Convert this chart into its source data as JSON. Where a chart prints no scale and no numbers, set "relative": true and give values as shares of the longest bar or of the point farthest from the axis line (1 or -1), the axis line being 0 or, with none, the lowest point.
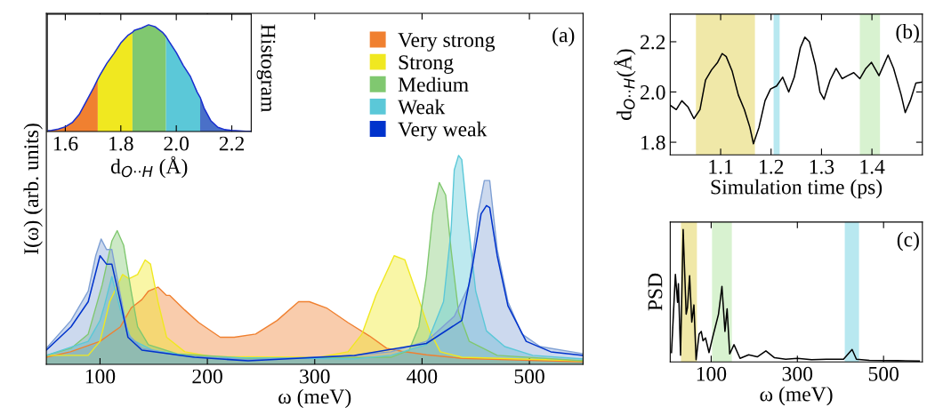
{
  "chart_data": [
    {
      "type": "area",
      "xlabel": "ω (meV)",
      "ylabel": "I(ω) (arb. units)",
      "relative": true,
      "xlim": [
        50,
        550
      ],
      "xticks": [
        100,
        200,
        300,
        400,
        500
      ],
      "legend": "top",
      "annotations": [
        "Histogram",
        "(a)"
      ],
      "series": [
        {
          "name": "Very strong",
          "color": "#f08030",
          "x": [
            50,
            72.5,
            100,
            119,
            129,
            139,
            145,
            154,
            162,
            165,
            179,
            192,
            212,
            225,
            245,
            265,
            285,
            295,
            311,
            331,
            351,
            367,
            381,
            404,
            437,
            550
          ],
          "values": [
            0.034,
            0.06,
            0.11,
            0.18,
            0.27,
            0.31,
            0.35,
            0.37,
            0.33,
            0.33,
            0.26,
            0.2,
            0.13,
            0.13,
            0.145,
            0.21,
            0.3,
            0.3,
            0.27,
            0.2,
            0.136,
            0.077,
            0.063,
            0.046,
            0.029,
            0.012
          ]
        },
        {
          "name": "Strong",
          "color": "#f0e820",
          "x": [
            50,
            89,
            100,
            109,
            121,
            127,
            135,
            142,
            147,
            154,
            162,
            179,
            205,
            304,
            331,
            344,
            357,
            374,
            384,
            397,
            407,
            417,
            437,
            550
          ],
          "values": [
            0.043,
            0.043,
            0.11,
            0.3,
            0.43,
            0.41,
            0.43,
            0.5,
            0.48,
            0.3,
            0.13,
            0.06,
            0.037,
            0.034,
            0.06,
            0.145,
            0.33,
            0.52,
            0.5,
            0.31,
            0.16,
            0.06,
            0.034,
            0.017
          ]
        },
        {
          "name": "Medium",
          "color": "#80c870",
          "x": [
            50,
            73,
            89,
            102,
            111,
            116,
            122,
            129,
            135,
            145,
            172,
            238,
            371,
            388,
            397,
            404,
            410,
            416,
            422,
            427,
            434,
            444,
            470,
            550
          ],
          "values": [
            0.043,
            0.077,
            0.145,
            0.38,
            0.59,
            0.64,
            0.57,
            0.35,
            0.18,
            0.094,
            0.05,
            0.029,
            0.034,
            0.068,
            0.18,
            0.42,
            0.72,
            0.87,
            0.81,
            0.55,
            0.25,
            0.11,
            0.043,
            0.017
          ]
        },
        {
          "name": "Weak",
          "color": "#5bc8d8",
          "x": [
            50,
            89,
            100,
            104,
            111,
            119,
            129,
            149,
            188,
            337,
            371,
            404,
            420,
            427,
            430,
            434,
            437,
            442,
            450,
            460,
            477,
            503,
            550
          ],
          "values": [
            0.043,
            0.11,
            0.21,
            0.28,
            0.42,
            0.26,
            0.12,
            0.068,
            0.034,
            0.026,
            0.043,
            0.094,
            0.3,
            0.64,
            0.93,
            1.0,
            0.98,
            0.72,
            0.35,
            0.16,
            0.085,
            0.043,
            0.026
          ]
        },
        {
          "color": "#7fa0d4",
          "x": [
            50,
            73,
            89,
            96,
            101,
            106,
            111,
            119,
            126,
            139,
            172,
            238,
            337,
            371,
            404,
            430,
            444,
            452,
            458,
            463,
            470,
            480,
            493,
            510,
            550
          ],
          "values": [
            0.077,
            0.21,
            0.35,
            0.52,
            0.6,
            0.55,
            0.55,
            0.33,
            0.145,
            0.077,
            0.043,
            0.022,
            0.043,
            0.06,
            0.11,
            0.23,
            0.38,
            0.72,
            0.88,
            0.88,
            0.55,
            0.3,
            0.145,
            0.085,
            0.051
          ]
        },
        {
          "name": "Very weak",
          "type": "line",
          "color": "#0033cc",
          "x": [
            50,
            73,
            89,
            100,
            106,
            111,
            119,
            126,
            139,
            188,
            238,
            337,
            404,
            437,
            447,
            455,
            460,
            463,
            470,
            480,
            497,
            520,
            550
          ],
          "values": [
            0.068,
            0.18,
            0.3,
            0.52,
            0.48,
            0.48,
            0.3,
            0.13,
            0.068,
            0.034,
            0.017,
            0.043,
            0.1,
            0.21,
            0.47,
            0.72,
            0.76,
            0.75,
            0.52,
            0.28,
            0.11,
            0.06,
            0.043
          ]
        }
      ]
    },
    {
      "type": "area",
      "xlabel": "d$_{O··H}$ (Å)",
      "relative": true,
      "tick_labels": "x",
      "xlim": [
        1.535,
        2.27
      ],
      "xticks": [
        1.6,
        1.8,
        {
          "value": 2,
          "label": "2.0"
        },
        2.2
      ],
      "series": [
        {
          "color": "#f08030",
          "x": [
            1.54,
            1.55,
            1.575,
            1.6,
            1.625,
            1.65,
            1.675,
            1.7,
            1.717
          ],
          "values": [
            0.008,
            0.01,
            0.024,
            0.045,
            0.084,
            0.16,
            0.28,
            0.4,
            0.49
          ]
        },
        {
          "color": "#f0e820",
          "x": [
            1.717,
            1.725,
            1.75,
            1.775,
            1.8,
            1.825,
            1.842
          ],
          "values": [
            0.49,
            0.53,
            0.64,
            0.73,
            0.83,
            0.9,
            0.93
          ]
        },
        {
          "color": "#80c870",
          "x": [
            1.842,
            1.85,
            1.875,
            1.9,
            1.925,
            1.95,
            1.963
          ],
          "values": [
            0.93,
            0.95,
            0.97,
            1.0,
            0.98,
            0.93,
            0.89
          ]
        },
        {
          "color": "#5bc8d8",
          "x": [
            1.963,
            1.975,
            2.0,
            2.025,
            2.05,
            2.075,
            2.086
          ],
          "values": [
            0.89,
            0.84,
            0.74,
            0.62,
            0.52,
            0.37,
            0.32
          ]
        },
        {
          "color": "#4a70c8",
          "x": [
            2.086,
            2.1,
            2.125,
            2.15,
            2.175,
            2.2,
            2.225,
            2.25,
            2.27
          ],
          "values": [
            0.32,
            0.22,
            0.1,
            0.04,
            0.018,
            0.01,
            0.006,
            0.003,
            0.002
          ]
        },
        {
          "type": "line",
          "color": "#1a2fd0",
          "x": [
            1.54,
            1.55,
            1.575,
            1.6,
            1.625,
            1.65,
            1.675,
            1.7,
            1.717,
            1.725,
            1.75,
            1.775,
            1.8,
            1.825,
            1.842,
            1.85,
            1.875,
            1.9,
            1.925,
            1.95,
            1.963,
            1.975,
            2.0,
            2.025,
            2.05,
            2.075,
            2.086,
            2.1,
            2.125,
            2.15,
            2.175,
            2.2,
            2.225,
            2.25,
            2.27
          ],
          "values": [
            0.008,
            0.01,
            0.024,
            0.045,
            0.084,
            0.16,
            0.28,
            0.4,
            0.49,
            0.53,
            0.64,
            0.73,
            0.83,
            0.9,
            0.93,
            0.95,
            0.97,
            1.0,
            0.98,
            0.93,
            0.89,
            0.84,
            0.74,
            0.62,
            0.52,
            0.37,
            0.32,
            0.22,
            0.1,
            0.04,
            0.018,
            0.01,
            0.006,
            0.003,
            0.002
          ]
        }
      ]
    },
    {
      "type": "line",
      "xlabel": "Simulation time (ps)",
      "ylabel": "d$_{O··H}$(Å)",
      "xlim": [
        1.0,
        1.5
      ],
      "xticks": [
        1.1,
        1.2,
        1.3,
        1.4
      ],
      "ylim": [
        1.75,
        2.31
      ],
      "yticks": [
        1.8,
        {
          "value": 2,
          "label": "2.0"
        },
        2.2
      ],
      "annotations": [
        "(b)"
      ],
      "bands": [
        {
          "axis": "x",
          "from": 1.051,
          "to": 1.168,
          "color": "#f0e8a8"
        },
        {
          "axis": "x",
          "from": 1.205,
          "to": 1.217,
          "color": "#b8e8f0"
        },
        {
          "axis": "x",
          "from": 1.376,
          "to": 1.416,
          "color": "#d8f2d0"
        }
      ],
      "series": [
        {
          "color": "#000000",
          "x": [
            1.0,
            1.012,
            1.023,
            1.035,
            1.047,
            1.059,
            1.07,
            1.082,
            1.094,
            1.103,
            1.111,
            1.123,
            1.135,
            1.147,
            1.158,
            1.165,
            1.176,
            1.188,
            1.199,
            1.211,
            1.223,
            1.235,
            1.246,
            1.258,
            1.267,
            1.276,
            1.288,
            1.297,
            1.305,
            1.317,
            1.329,
            1.341,
            1.352,
            1.364,
            1.376,
            1.388,
            1.399,
            1.414,
            1.432,
            1.443,
            1.458,
            1.466,
            1.476,
            1.487,
            1.5
          ],
          "values": [
            1.947,
            1.93,
            1.965,
            1.941,
            1.894,
            1.93,
            2.047,
            2.088,
            2.118,
            2.153,
            2.141,
            2.082,
            1.988,
            1.93,
            1.859,
            1.794,
            1.859,
            1.965,
            2.012,
            2.024,
            2.059,
            2.0,
            2.059,
            2.176,
            2.218,
            2.2,
            2.106,
            2.0,
            1.971,
            2.047,
            2.094,
            2.053,
            2.065,
            2.077,
            2.053,
            2.094,
            2.118,
            2.065,
            2.147,
            2.094,
            1.988,
            1.918,
            1.965,
            2.035,
            2.04
          ]
        }
      ]
    },
    {
      "type": "line",
      "xlabel": "ω (meV)",
      "ylabel": "PSD",
      "relative": true,
      "xlim": [
        5,
        590
      ],
      "xticks": [
        100,
        300,
        500
      ],
      "annotations": [
        "(c)"
      ],
      "bands": [
        {
          "axis": "x",
          "from": 30,
          "to": 67,
          "color": "#f0e8a8"
        },
        {
          "axis": "x",
          "from": 102,
          "to": 148,
          "color": "#d8f2d0"
        },
        {
          "axis": "x",
          "from": 410,
          "to": 443,
          "color": "#b8e8f0"
        }
      ],
      "series": [
        {
          "color": "#000000",
          "x": [
            8,
            17,
            22,
            24,
            29,
            35,
            42,
            45,
            50,
            55,
            60,
            65,
            72,
            77,
            81,
            87,
            95,
            103,
            110,
            117,
            125,
            132,
            137,
            143,
            153,
            167,
            187,
            207,
            227,
            247,
            273,
            300,
            333,
            367,
            407,
            427,
            437,
            467,
            533,
            583
          ],
          "values": [
            0.07,
            0.66,
            0.45,
            0.59,
            0.05,
            1.0,
            0.36,
            0.41,
            0.65,
            0.3,
            0.43,
            0.016,
            0.21,
            0.23,
            0.16,
            0.18,
            0.07,
            0.18,
            0.27,
            0.36,
            0.57,
            0.23,
            0.4,
            0.06,
            0.13,
            0.027,
            0.054,
            0.038,
            0.083,
            0.031,
            0.02,
            0.027,
            0.016,
            0.02,
            0.02,
            0.094,
            0.02,
            0.011,
            0.009,
            0.007
          ]
        }
      ]
    }
  ]
}
